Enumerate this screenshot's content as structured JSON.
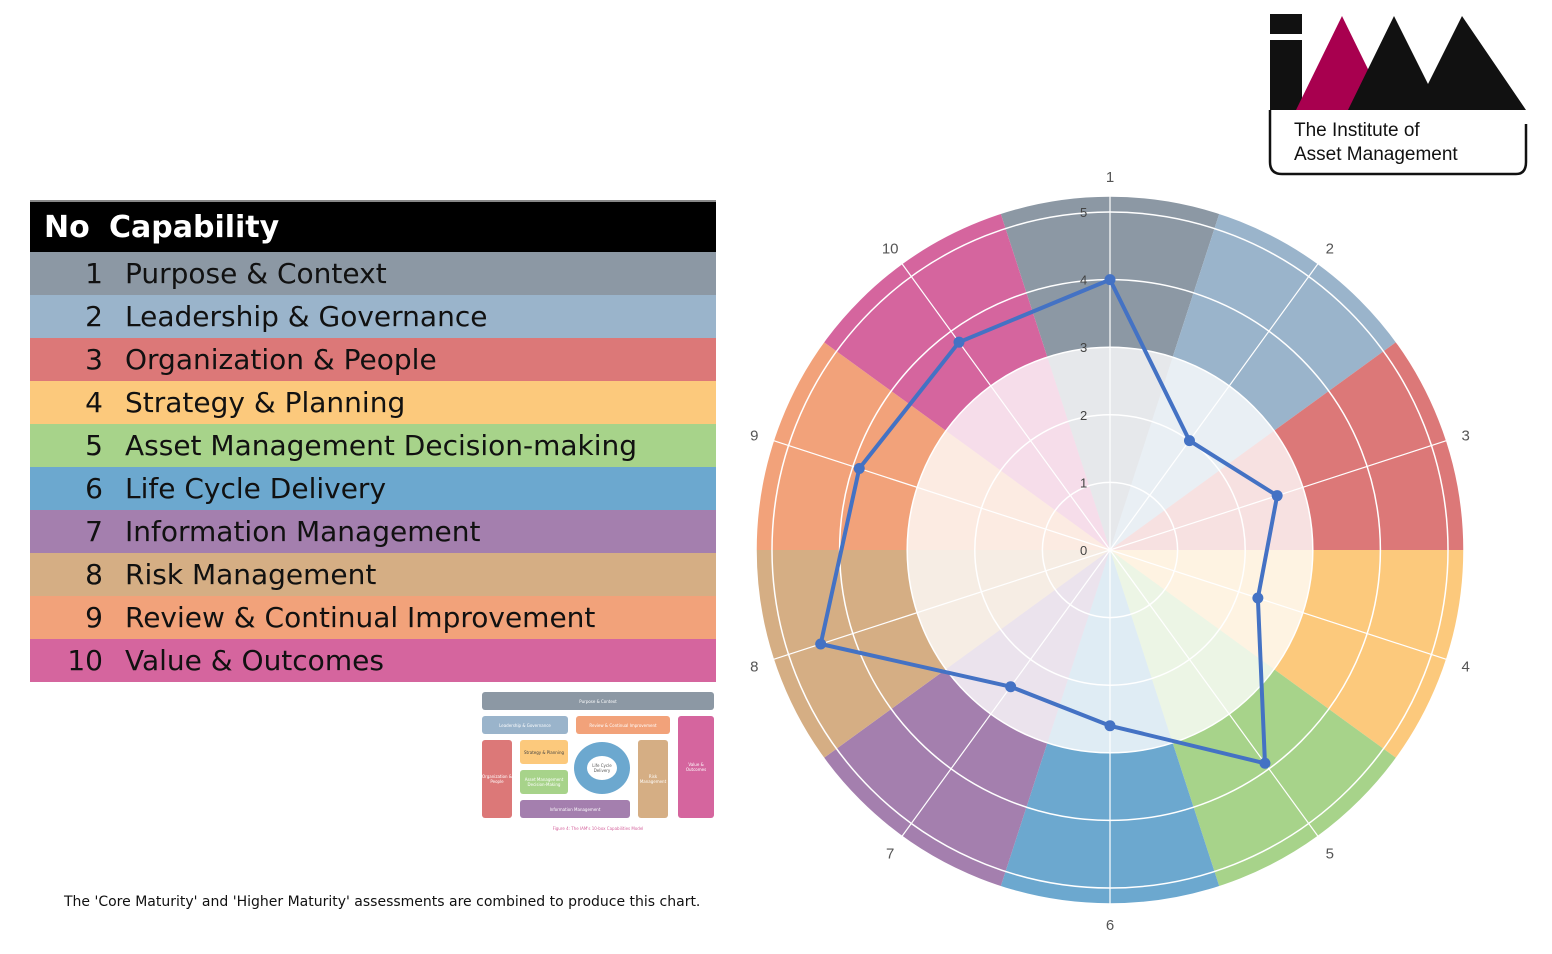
{
  "table": {
    "header": {
      "no": "No",
      "capability": "Capability"
    },
    "rows": [
      {
        "no": "1",
        "label": "Purpose & Context",
        "color": "#8c98a4"
      },
      {
        "no": "2",
        "label": "Leadership & Governance",
        "color": "#9ab4cb"
      },
      {
        "no": "3",
        "label": "Organization & People",
        "color": "#dc7878"
      },
      {
        "no": "4",
        "label": "Strategy & Planning",
        "color": "#fcc97c"
      },
      {
        "no": "5",
        "label": "Asset Management Decision-making",
        "color": "#a7d38a"
      },
      {
        "no": "6",
        "label": "Life Cycle Delivery",
        "color": "#6ca8cf"
      },
      {
        "no": "7",
        "label": "Information Management",
        "color": "#a47fae"
      },
      {
        "no": "8",
        "label": "Risk Management",
        "color": "#d5ae84"
      },
      {
        "no": "9",
        "label": "Review & Continual Improvement",
        "color": "#f2a27a"
      },
      {
        "no": "10",
        "label": "Value & Outcomes",
        "color": "#d5659e"
      }
    ]
  },
  "footnote": "The 'Core Maturity' and 'Higher Maturity' assessments are combined to produce this chart.",
  "logo": {
    "line1": "The Institute of",
    "line2": "Asset Management",
    "colors": {
      "black": "#111111",
      "magenta": "#a8004f"
    }
  },
  "thumbnail": {
    "boxes": {
      "top": "Purpose & Context",
      "leadership": "Leadership & Governance",
      "review": "Review & Continual Improvement",
      "organization": "Organization & People",
      "strategy": "Strategy & Planning",
      "decision": "Asset Management Decision-Making",
      "lifecycle": "Life Cycle Delivery",
      "risk": "Risk Management",
      "value": "Value & Outcomes",
      "information": "Information Management"
    },
    "caption": "Figure 4: The IAM's 10-box Capabilities Model"
  },
  "chart_data": {
    "type": "radar",
    "categories": [
      "1",
      "2",
      "3",
      "4",
      "5",
      "6",
      "7",
      "8",
      "9",
      "10"
    ],
    "series": [
      {
        "values": [
          4.0,
          2.0,
          2.6,
          2.3,
          3.9,
          2.6,
          2.5,
          4.5,
          3.9,
          3.8
        ]
      }
    ],
    "rlim": [
      0,
      5
    ],
    "radial_ticks": [
      0,
      1,
      2,
      3,
      4,
      5
    ],
    "segment_colors": [
      "#8c98a4",
      "#9ab4cb",
      "#dc7878",
      "#fcc97c",
      "#a7d38a",
      "#6ca8cf",
      "#a47fae",
      "#d5ae84",
      "#f2a27a",
      "#d5659e"
    ],
    "line_color": "#4472c4",
    "grid": true,
    "legend": "none"
  }
}
